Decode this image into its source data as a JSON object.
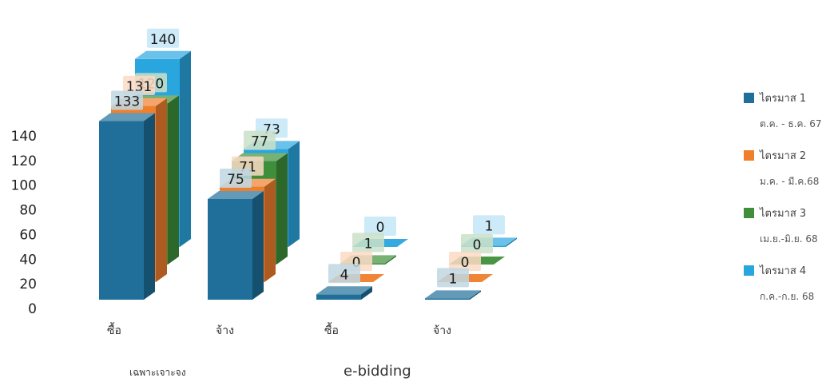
{
  "chart_data": {
    "type": "bar",
    "style": "3d-clustered-columns",
    "categories": [
      "ซื้อ",
      "จ้าง",
      "ซื้อ",
      "จ้าง"
    ],
    "category_groups": [
      {
        "label": "เฉพาะเจาะจง",
        "categories": [
          0,
          1
        ]
      },
      {
        "label": "e-bidding",
        "categories": [
          2,
          3
        ]
      }
    ],
    "series": [
      {
        "name": "ไตรมาส 1",
        "sublabel": "ต.ค. - ธ.ค. 67",
        "color": "#1f6f9a",
        "values": [
          133,
          75,
          4,
          1
        ]
      },
      {
        "name": "ไตรมาส 2",
        "sublabel": "ม.ค. - มี.ค.68",
        "color": "#f07f2c",
        "values": [
          131,
          71,
          0,
          0
        ]
      },
      {
        "name": "ไตรมาส 3",
        "sublabel": "เม.ย.-มิ.ย. 68",
        "color": "#3f8f3a",
        "values": [
          120,
          77,
          1,
          0
        ]
      },
      {
        "name": "ไตรมาส 4",
        "sublabel": "ก.ค.-ก.ย. 68",
        "color": "#2aa6df",
        "values": [
          140,
          73,
          0,
          1
        ]
      }
    ],
    "yticks": [
      0,
      20,
      40,
      60,
      80,
      100,
      120,
      140
    ],
    "ylim": [
      0,
      140
    ],
    "grid": false,
    "legend": "right"
  }
}
